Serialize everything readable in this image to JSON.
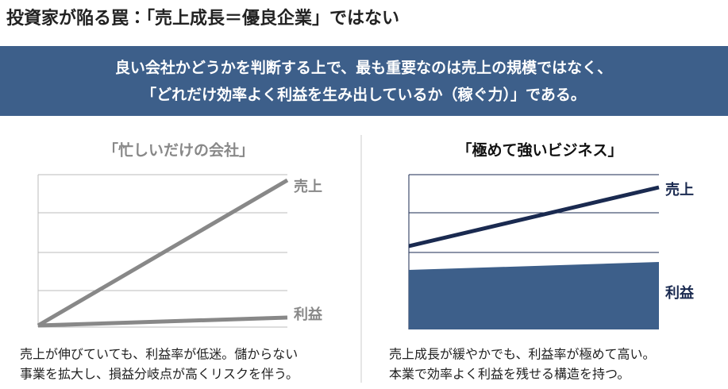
{
  "title": "投資家が陥る罠：「売上成長＝優良企業」ではない",
  "banner": {
    "lines": [
      "良い会社かどうかを判断する上で、最も重要なのは売上の規模ではなく、",
      "「どれだけ効率よく利益を生み出しているか（稼ぐ力）」である。"
    ]
  },
  "panels": [
    {
      "heading": "「忙しいだけの会社」",
      "sales_label": "売上",
      "profit_label": "利益",
      "caption": [
        "売上が伸びていても、利益率が低迷。儲からない",
        "事業を拡大し、損益分岐点が高くリスクを伴う。"
      ]
    },
    {
      "heading": "「極めて強いビジネス」",
      "sales_label": "売上",
      "profit_label": "利益",
      "caption": [
        "売上成長が緩やかでも、利益率が極めて高い。",
        "本業で効率よく利益を残せる構造を持つ。"
      ]
    }
  ]
}
